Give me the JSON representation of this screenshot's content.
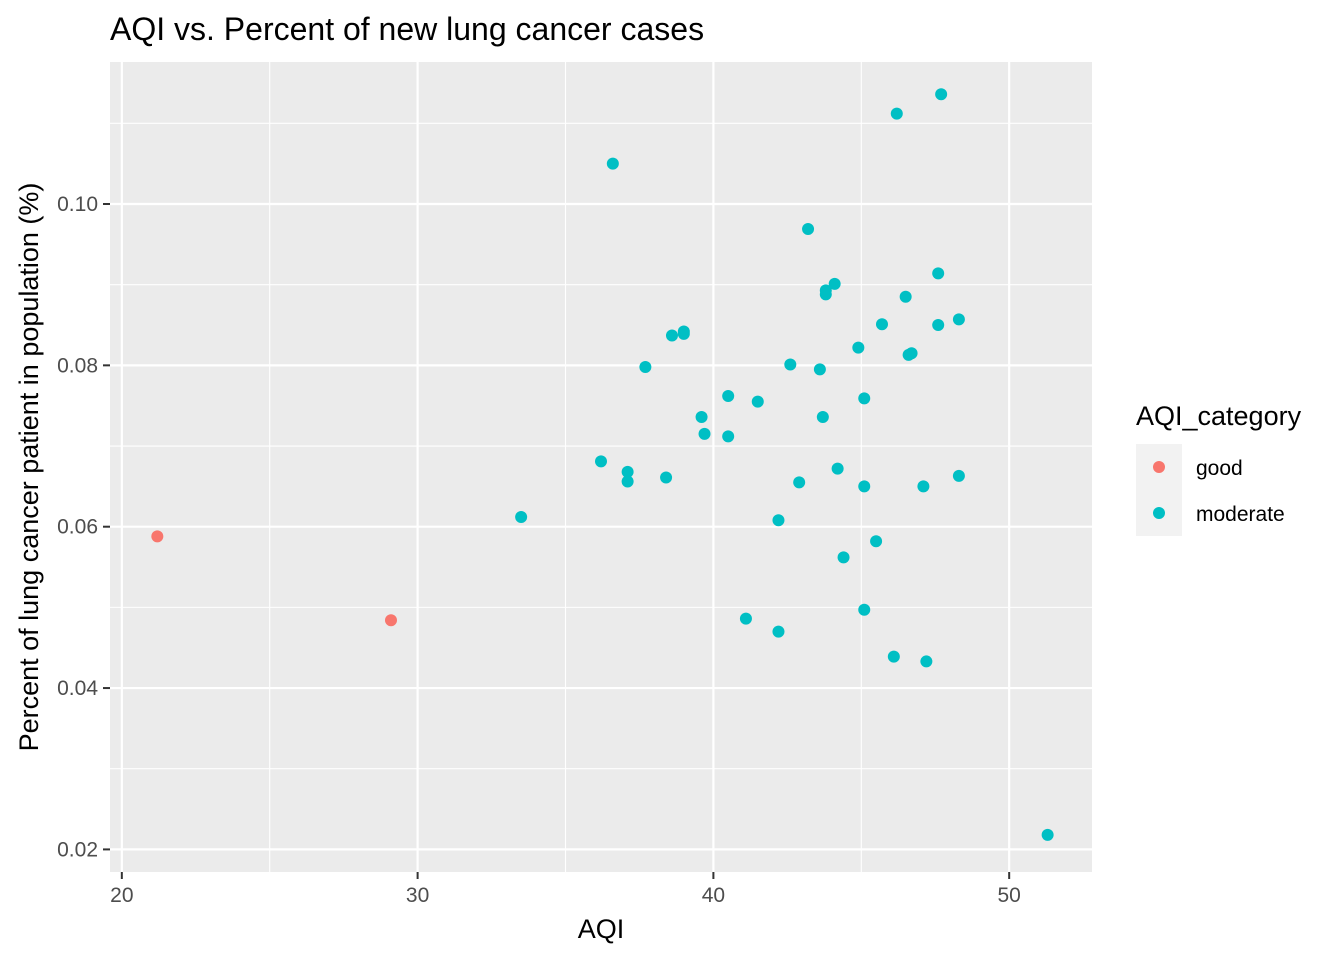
{
  "chart_data": {
    "type": "scatter",
    "title": "AQI vs. Percent of new lung cancer cases",
    "xlabel": "AQI",
    "ylabel": "Percent of lung cancer patient in population (%)",
    "xlim": [
      19.6,
      52.8
    ],
    "ylim": [
      0.0172,
      0.1176
    ],
    "x_ticks": [
      20,
      30,
      40,
      50
    ],
    "y_ticks": [
      0.02,
      0.04,
      0.06,
      0.08,
      0.1
    ],
    "x_tick_labels": [
      "20",
      "30",
      "40",
      "50"
    ],
    "y_tick_labels": [
      "0.02",
      "0.04",
      "0.06",
      "0.08",
      "0.10"
    ],
    "grid": true,
    "legend": {
      "title": "AQI_category",
      "placement": "right",
      "entries": [
        "good",
        "moderate"
      ]
    },
    "colors": {
      "good": "#F8766D",
      "moderate": "#00BFC4",
      "panel": "#EBEBEB",
      "grid": "#FFFFFF"
    },
    "series": [
      {
        "name": "good",
        "points": [
          [
            21.2,
            0.0588
          ],
          [
            29.1,
            0.0484
          ]
        ]
      },
      {
        "name": "moderate",
        "points": [
          [
            33.5,
            0.0612
          ],
          [
            36.2,
            0.0681
          ],
          [
            36.6,
            0.105
          ],
          [
            37.1,
            0.0668
          ],
          [
            37.1,
            0.0656
          ],
          [
            37.7,
            0.0798
          ],
          [
            38.4,
            0.0661
          ],
          [
            38.6,
            0.0837
          ],
          [
            39.0,
            0.0842
          ],
          [
            39.0,
            0.0839
          ],
          [
            39.6,
            0.0736
          ],
          [
            39.7,
            0.0715
          ],
          [
            40.5,
            0.0762
          ],
          [
            40.5,
            0.0712
          ],
          [
            41.1,
            0.0486
          ],
          [
            41.5,
            0.0755
          ],
          [
            42.2,
            0.0608
          ],
          [
            42.2,
            0.047
          ],
          [
            42.6,
            0.0801
          ],
          [
            42.9,
            0.0655
          ],
          [
            43.2,
            0.0969
          ],
          [
            43.6,
            0.0795
          ],
          [
            43.7,
            0.0736
          ],
          [
            43.8,
            0.0893
          ],
          [
            43.8,
            0.0888
          ],
          [
            44.1,
            0.0901
          ],
          [
            44.2,
            0.0672
          ],
          [
            44.4,
            0.0562
          ],
          [
            44.9,
            0.0822
          ],
          [
            45.1,
            0.0759
          ],
          [
            45.1,
            0.065
          ],
          [
            45.1,
            0.0497
          ],
          [
            45.5,
            0.0582
          ],
          [
            45.7,
            0.0851
          ],
          [
            46.1,
            0.0439
          ],
          [
            46.2,
            0.1112
          ],
          [
            46.5,
            0.0885
          ],
          [
            46.6,
            0.0813
          ],
          [
            46.7,
            0.0815
          ],
          [
            47.1,
            0.065
          ],
          [
            47.2,
            0.0433
          ],
          [
            47.6,
            0.0914
          ],
          [
            47.6,
            0.085
          ],
          [
            47.7,
            0.1136
          ],
          [
            48.3,
            0.0857
          ],
          [
            48.3,
            0.0663
          ],
          [
            51.3,
            0.0218
          ]
        ]
      }
    ]
  }
}
